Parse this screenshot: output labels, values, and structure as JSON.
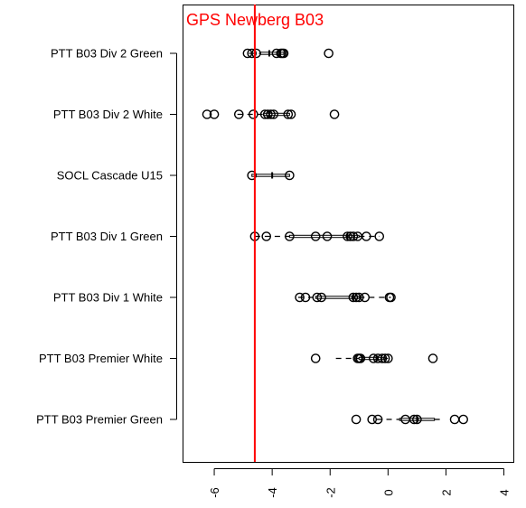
{
  "chart_data": {
    "type": "boxplot",
    "orientation": "horizontal",
    "title": "",
    "xlabel": "",
    "ylabel": "",
    "xlim": [
      -7.0,
      4.2
    ],
    "x_ticks": [
      -6,
      -4,
      -2,
      0,
      2,
      4
    ],
    "x_tick_labels": [
      "-6",
      "-4",
      "-2",
      "0",
      "2",
      "4"
    ],
    "grid": false,
    "reference_line": {
      "x": -4.6,
      "label": "GPS Newberg B03",
      "color": "#ff0000"
    },
    "categories": [
      {
        "name": "PTT B03 Div 2 Green",
        "whisker_low": -4.8,
        "q1": -4.4,
        "median": -4.1,
        "q3": -3.6,
        "whisker_high": -3.6,
        "points": [
          -4.85,
          -4.7,
          -4.55,
          -3.85,
          -3.7,
          -3.65,
          -3.6,
          -2.05
        ]
      },
      {
        "name": "PTT B03 Div 2 White",
        "whisker_low": -5.2,
        "q1": -4.3,
        "median": -4.1,
        "q3": -3.4,
        "whisker_high": -3.4,
        "points": [
          -6.25,
          -6.0,
          -5.15,
          -4.65,
          -4.25,
          -4.15,
          -4.05,
          -3.95,
          -3.45,
          -3.35,
          -1.85
        ]
      },
      {
        "name": "SOCL Cascade U15",
        "whisker_low": -4.7,
        "q1": -4.7,
        "median": -4.0,
        "q3": -3.4,
        "whisker_high": -3.4,
        "points": [
          -4.7,
          -3.4
        ]
      },
      {
        "name": "PTT B03 Div 1 Green",
        "whisker_low": -4.6,
        "q1": -3.4,
        "median": -1.4,
        "q3": -1.0,
        "whisker_high": -0.3,
        "points": [
          -4.6,
          -4.2,
          -3.4,
          -2.5,
          -2.1,
          -1.4,
          -1.3,
          -1.2,
          -1.05,
          -0.75,
          -0.3
        ]
      },
      {
        "name": "PTT B03 Div 1 White",
        "whisker_low": -3.1,
        "q1": -2.5,
        "median": -1.2,
        "q3": -1.0,
        "whisker_high": 0.1,
        "points": [
          -3.05,
          -2.85,
          -2.45,
          -2.3,
          -1.2,
          -1.1,
          -1.0,
          -0.8,
          0.05,
          0.1
        ]
      },
      {
        "name": "PTT B03 Premier White",
        "whisker_low": -1.8,
        "q1": -1.0,
        "median": -0.4,
        "q3": -0.1,
        "whisker_high": 0.0,
        "points": [
          -2.5,
          -1.05,
          -1.0,
          -0.95,
          -0.5,
          -0.35,
          -0.2,
          -0.1,
          0.0,
          1.55
        ]
      },
      {
        "name": "PTT B03 Premier Green",
        "whisker_low": -0.4,
        "q1": 0.4,
        "median": 1.0,
        "q3": 1.6,
        "whisker_high": 1.9,
        "points": [
          -1.1,
          -0.55,
          -0.35,
          0.6,
          0.9,
          1.0,
          2.3,
          2.6
        ]
      }
    ]
  }
}
